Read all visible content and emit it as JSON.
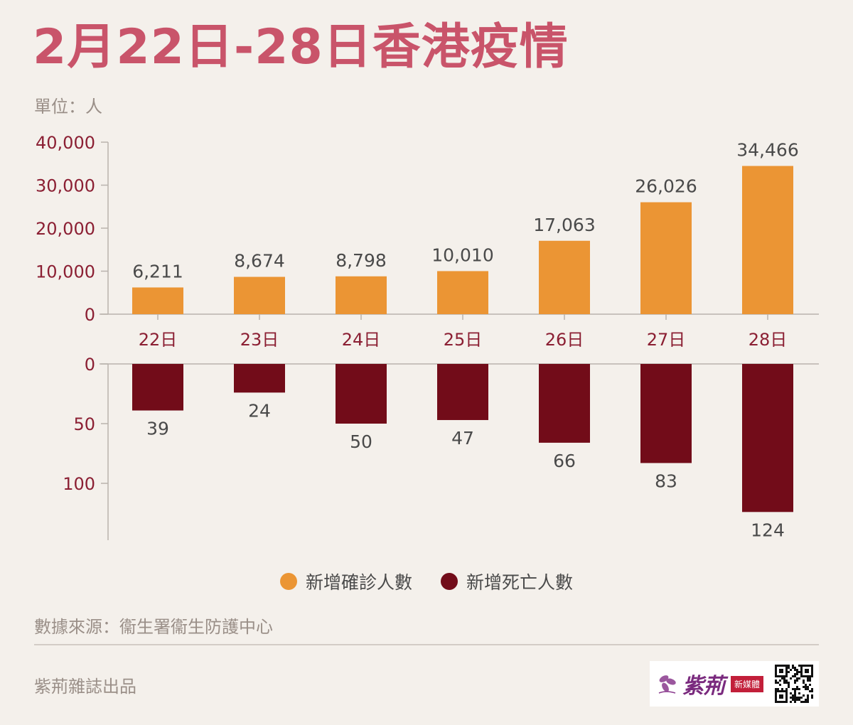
{
  "title": "2月22日-28日香港疫情",
  "unit_label": "單位：人",
  "legend": [
    {
      "label": "新增確診人數",
      "color": "#eb9534"
    },
    {
      "label": "新增死亡人數",
      "color": "#720c19"
    }
  ],
  "source": "數據來源：衞生署衞生防護中心",
  "publisher": "紫荊雜誌出品",
  "logo": {
    "text": "紫荊",
    "badge": "新媒體"
  },
  "colors": {
    "title": "#c9546a",
    "axis_text": "#8b1f33",
    "confirmed": "#eb9534",
    "deaths": "#720c19",
    "background": "#f4f0eb"
  },
  "chart_data": [
    {
      "type": "bar",
      "categories": [
        "22日",
        "23日",
        "24日",
        "25日",
        "26日",
        "27日",
        "28日"
      ],
      "series": [
        {
          "name": "新增確診人數",
          "values": [
            6211,
            8674,
            8798,
            10010,
            17063,
            26026,
            34466
          ]
        }
      ],
      "value_labels": [
        "6,211",
        "8,674",
        "8,798",
        "10,010",
        "17,063",
        "26,026",
        "34,466"
      ],
      "ylim": [
        0,
        40000
      ],
      "yticks": [
        0,
        10000,
        20000,
        30000,
        40000
      ],
      "ytick_labels": [
        "0",
        "10,000",
        "20,000",
        "30,000",
        "40,000"
      ],
      "grid": false
    },
    {
      "type": "bar",
      "orientation": "downward",
      "categories": [
        "22日",
        "23日",
        "24日",
        "25日",
        "26日",
        "27日",
        "28日"
      ],
      "series": [
        {
          "name": "新增死亡人數",
          "values": [
            39,
            24,
            50,
            47,
            66,
            83,
            124
          ]
        }
      ],
      "value_labels": [
        "39",
        "24",
        "50",
        "47",
        "66",
        "83",
        "124"
      ],
      "ylim": [
        0,
        148
      ],
      "yticks": [
        0,
        50,
        100
      ],
      "ytick_labels": [
        "0",
        "50",
        "100"
      ],
      "grid": false
    }
  ]
}
